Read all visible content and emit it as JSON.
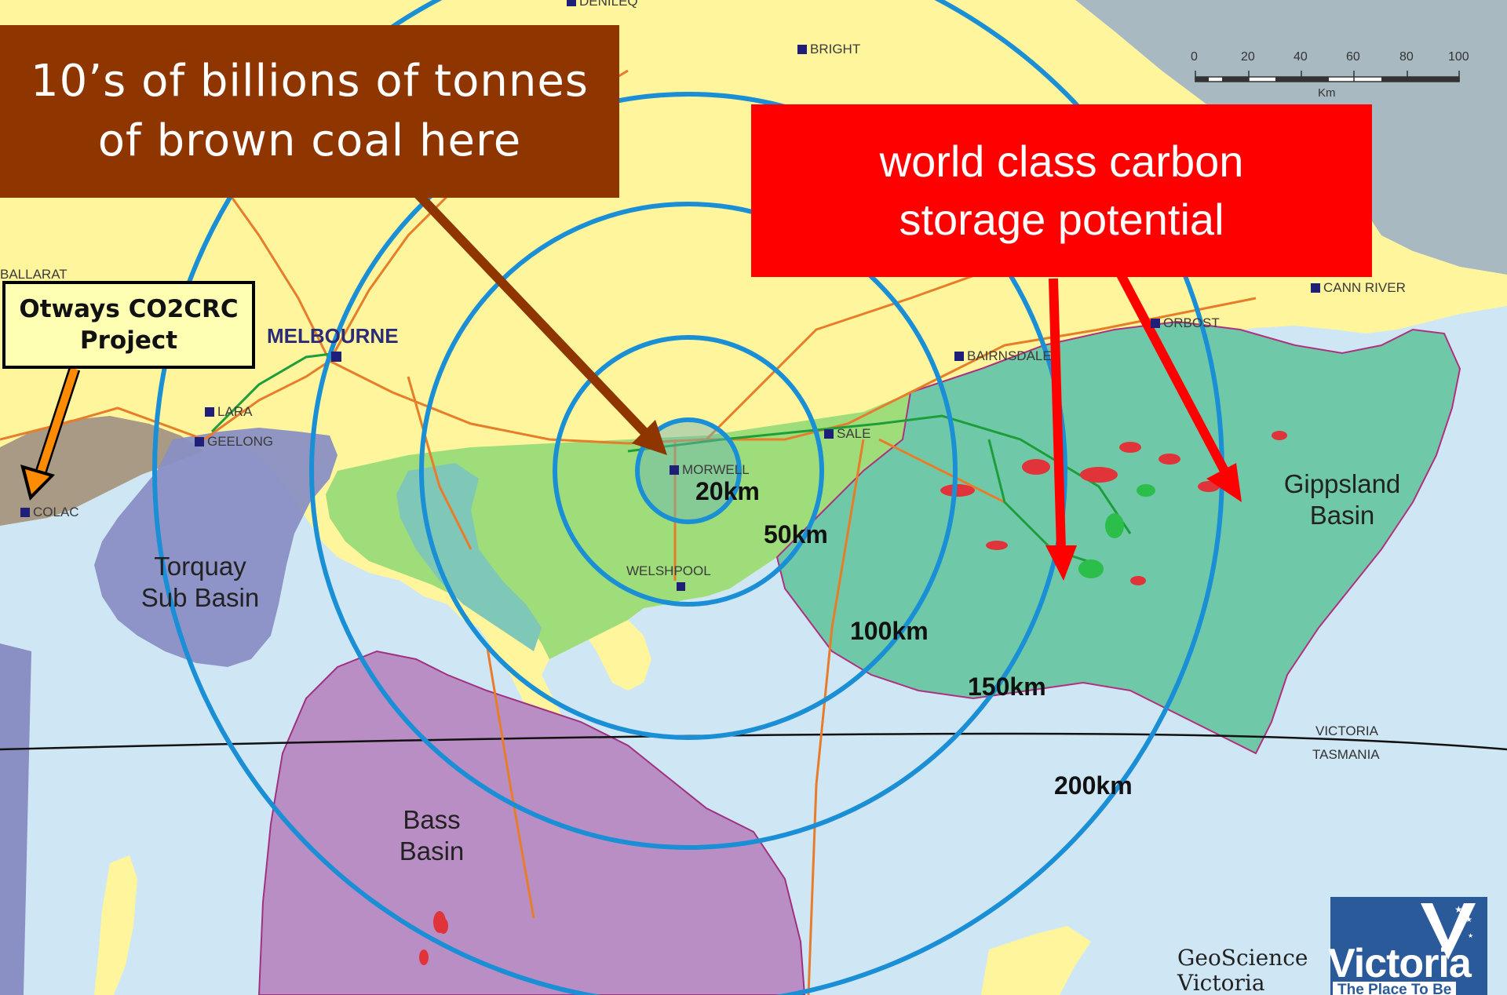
{
  "callouts": {
    "coal_line1": "10’s of billions of tonnes",
    "coal_line2": "of brown coal here",
    "storage_line1": "world class carbon",
    "storage_line2": "storage potential",
    "otways_line1": "Otways CO2CRC",
    "otways_line2": "Project"
  },
  "towns": {
    "denilequin": "DENILEQ",
    "bright": "BRIGHT",
    "ballarat": "BALLARAT",
    "melbourne": "MELBOURNE",
    "lara": "LARA",
    "geelong": "GEELONG",
    "colac": "COLAC",
    "morwell": "MORWELL",
    "welshpool": "WELSHPOOL",
    "sale": "SALE",
    "bairnsdale": "BAIRNSDALE",
    "orbost": "ORBOST",
    "cann_river": "CANN RIVER"
  },
  "rings": {
    "r20": "20km",
    "r50": "50km",
    "r100": "100km",
    "r150": "150km",
    "r200": "200km"
  },
  "basins": {
    "torquay_1": "Torquay",
    "torquay_2": "Sub Basin",
    "bass_1": "Bass",
    "bass_2": "Basin",
    "gippsland_1": "Gippsland",
    "gippsland_2": "Basin"
  },
  "states": {
    "victoria": "VICTORIA",
    "tasmania": "TASMANIA"
  },
  "scale": {
    "ticks": [
      "0",
      "20",
      "40",
      "60",
      "80",
      "100"
    ],
    "unit": "Km"
  },
  "logos": {
    "geoscience_1": "GeoScience",
    "geoscience_2": "Victoria",
    "victoria_word": "Victoria",
    "victoria_tag": "The Place To Be"
  },
  "colors": {
    "land": "#fff59d",
    "sea": "#cfe6f5",
    "gippsland_basin": "#6fc9a8",
    "onshore_basin": "#9fdc7a",
    "bass_basin": "#b98ec4",
    "torquay_basin": "#8a8fc4",
    "otway_onshore": "#a89a85",
    "ring": "#1b8fd6",
    "coal_callout": "#8f3500",
    "storage_callout": "#ff0000"
  }
}
